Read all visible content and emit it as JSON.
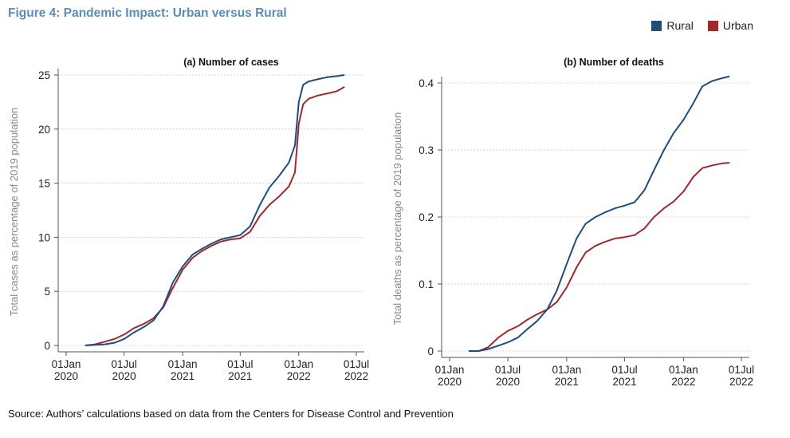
{
  "figure_title": "Figure 4: Pandemic Impact: Urban versus Rural",
  "source": "Source: Authors’ calculations based on data from the Centers for Disease Control and Prevention",
  "legend": [
    {
      "name": "Rural",
      "color": "#1f4e79"
    },
    {
      "name": "Urban",
      "color": "#9e2a2f"
    }
  ],
  "chart_data": [
    {
      "type": "line",
      "title": "(a) Number of cases",
      "ylabel": "Total cases as percentage of 2019 population",
      "xlabel": "",
      "ylim": [
        0,
        25
      ],
      "yticks": [
        0,
        5,
        10,
        15,
        20,
        25
      ],
      "xlim": [
        "2020-01-01",
        "2022-07-01"
      ],
      "xticks": [
        {
          "date": "2020-01-01",
          "line1": "01Jan",
          "line2": "2020"
        },
        {
          "date": "2020-07-01",
          "line1": "01Jul",
          "line2": "2020"
        },
        {
          "date": "2021-01-01",
          "line1": "01Jan",
          "line2": "2021"
        },
        {
          "date": "2021-07-01",
          "line1": "01Jul",
          "line2": "2021"
        },
        {
          "date": "2022-01-01",
          "line1": "01Jan",
          "line2": "2022"
        },
        {
          "date": "2022-07-01",
          "line1": "01Jul",
          "line2": "2022"
        }
      ],
      "grid": true,
      "series": [
        {
          "name": "Rural",
          "color": "#1f4e79",
          "x": [
            "2020-03-01",
            "2020-04-01",
            "2020-05-01",
            "2020-06-01",
            "2020-07-01",
            "2020-08-01",
            "2020-09-01",
            "2020-10-01",
            "2020-11-01",
            "2020-12-01",
            "2021-01-01",
            "2021-02-01",
            "2021-03-01",
            "2021-04-01",
            "2021-05-01",
            "2021-06-01",
            "2021-07-01",
            "2021-08-01",
            "2021-09-01",
            "2021-10-01",
            "2021-11-01",
            "2021-12-01",
            "2021-12-20",
            "2022-01-01",
            "2022-01-15",
            "2022-02-01",
            "2022-03-01",
            "2022-04-01",
            "2022-05-01",
            "2022-05-25"
          ],
          "values": [
            0.0,
            0.05,
            0.1,
            0.25,
            0.6,
            1.2,
            1.7,
            2.3,
            3.6,
            5.8,
            7.3,
            8.4,
            8.9,
            9.4,
            9.8,
            10.0,
            10.2,
            11.0,
            13.0,
            14.6,
            15.7,
            16.9,
            18.5,
            22.5,
            24.1,
            24.4,
            24.6,
            24.8,
            24.9,
            25.0
          ]
        },
        {
          "name": "Urban",
          "color": "#9e2a2f",
          "x": [
            "2020-03-01",
            "2020-04-01",
            "2020-05-01",
            "2020-06-01",
            "2020-07-01",
            "2020-08-01",
            "2020-09-01",
            "2020-10-01",
            "2020-11-01",
            "2020-12-01",
            "2021-01-01",
            "2021-02-01",
            "2021-03-01",
            "2021-04-01",
            "2021-05-01",
            "2021-06-01",
            "2021-07-01",
            "2021-08-01",
            "2021-09-01",
            "2021-10-01",
            "2021-11-01",
            "2021-12-01",
            "2021-12-20",
            "2022-01-01",
            "2022-01-15",
            "2022-02-01",
            "2022-03-01",
            "2022-04-01",
            "2022-05-01",
            "2022-05-25"
          ],
          "values": [
            0.0,
            0.1,
            0.35,
            0.6,
            1.0,
            1.6,
            2.0,
            2.5,
            3.5,
            5.3,
            7.0,
            8.1,
            8.7,
            9.2,
            9.6,
            9.8,
            9.9,
            10.5,
            12.0,
            13.0,
            13.8,
            14.7,
            16.0,
            20.5,
            22.3,
            22.8,
            23.1,
            23.3,
            23.5,
            23.9
          ]
        }
      ]
    },
    {
      "type": "line",
      "title": "(b) Number of deaths",
      "ylabel": "Total deaths as percentage of 2019 population",
      "xlabel": "",
      "ylim": [
        0,
        0.4
      ],
      "yticks": [
        0,
        0.1,
        0.2,
        0.3,
        0.4
      ],
      "xlim": [
        "2020-01-01",
        "2022-07-01"
      ],
      "xticks": [
        {
          "date": "2020-01-01",
          "line1": "01Jan",
          "line2": "2020"
        },
        {
          "date": "2020-07-01",
          "line1": "01Jul",
          "line2": "2020"
        },
        {
          "date": "2021-01-01",
          "line1": "01Jan",
          "line2": "2021"
        },
        {
          "date": "2021-07-01",
          "line1": "01Jul",
          "line2": "2021"
        },
        {
          "date": "2022-01-01",
          "line1": "01Jan",
          "line2": "2022"
        },
        {
          "date": "2022-07-01",
          "line1": "01Jul",
          "line2": "2022"
        }
      ],
      "grid": true,
      "series": [
        {
          "name": "Rural",
          "color": "#1f4e79",
          "x": [
            "2020-03-01",
            "2020-04-01",
            "2020-05-01",
            "2020-06-01",
            "2020-07-01",
            "2020-08-01",
            "2020-09-01",
            "2020-10-01",
            "2020-11-01",
            "2020-12-01",
            "2021-01-01",
            "2021-02-01",
            "2021-03-01",
            "2021-04-01",
            "2021-05-01",
            "2021-06-01",
            "2021-07-01",
            "2021-08-01",
            "2021-09-01",
            "2021-10-01",
            "2021-11-01",
            "2021-12-01",
            "2022-01-01",
            "2022-02-01",
            "2022-03-01",
            "2022-04-01",
            "2022-05-01",
            "2022-05-25"
          ],
          "values": [
            0.0,
            0.0,
            0.003,
            0.008,
            0.013,
            0.02,
            0.033,
            0.045,
            0.062,
            0.09,
            0.13,
            0.168,
            0.19,
            0.2,
            0.207,
            0.213,
            0.217,
            0.222,
            0.24,
            0.27,
            0.3,
            0.325,
            0.345,
            0.37,
            0.395,
            0.403,
            0.407,
            0.41
          ]
        },
        {
          "name": "Urban",
          "color": "#9e2a2f",
          "x": [
            "2020-03-01",
            "2020-04-01",
            "2020-05-01",
            "2020-06-01",
            "2020-07-01",
            "2020-08-01",
            "2020-09-01",
            "2020-10-01",
            "2020-11-01",
            "2020-12-01",
            "2021-01-01",
            "2021-02-01",
            "2021-03-01",
            "2021-04-01",
            "2021-05-01",
            "2021-06-01",
            "2021-07-01",
            "2021-08-01",
            "2021-09-01",
            "2021-10-01",
            "2021-11-01",
            "2021-12-01",
            "2022-01-01",
            "2022-02-01",
            "2022-03-01",
            "2022-04-01",
            "2022-05-01",
            "2022-05-25"
          ],
          "values": [
            0.0,
            0.0,
            0.006,
            0.02,
            0.03,
            0.037,
            0.047,
            0.055,
            0.062,
            0.073,
            0.095,
            0.125,
            0.147,
            0.157,
            0.163,
            0.168,
            0.17,
            0.173,
            0.183,
            0.2,
            0.213,
            0.223,
            0.238,
            0.26,
            0.273,
            0.277,
            0.28,
            0.281
          ]
        }
      ]
    }
  ]
}
